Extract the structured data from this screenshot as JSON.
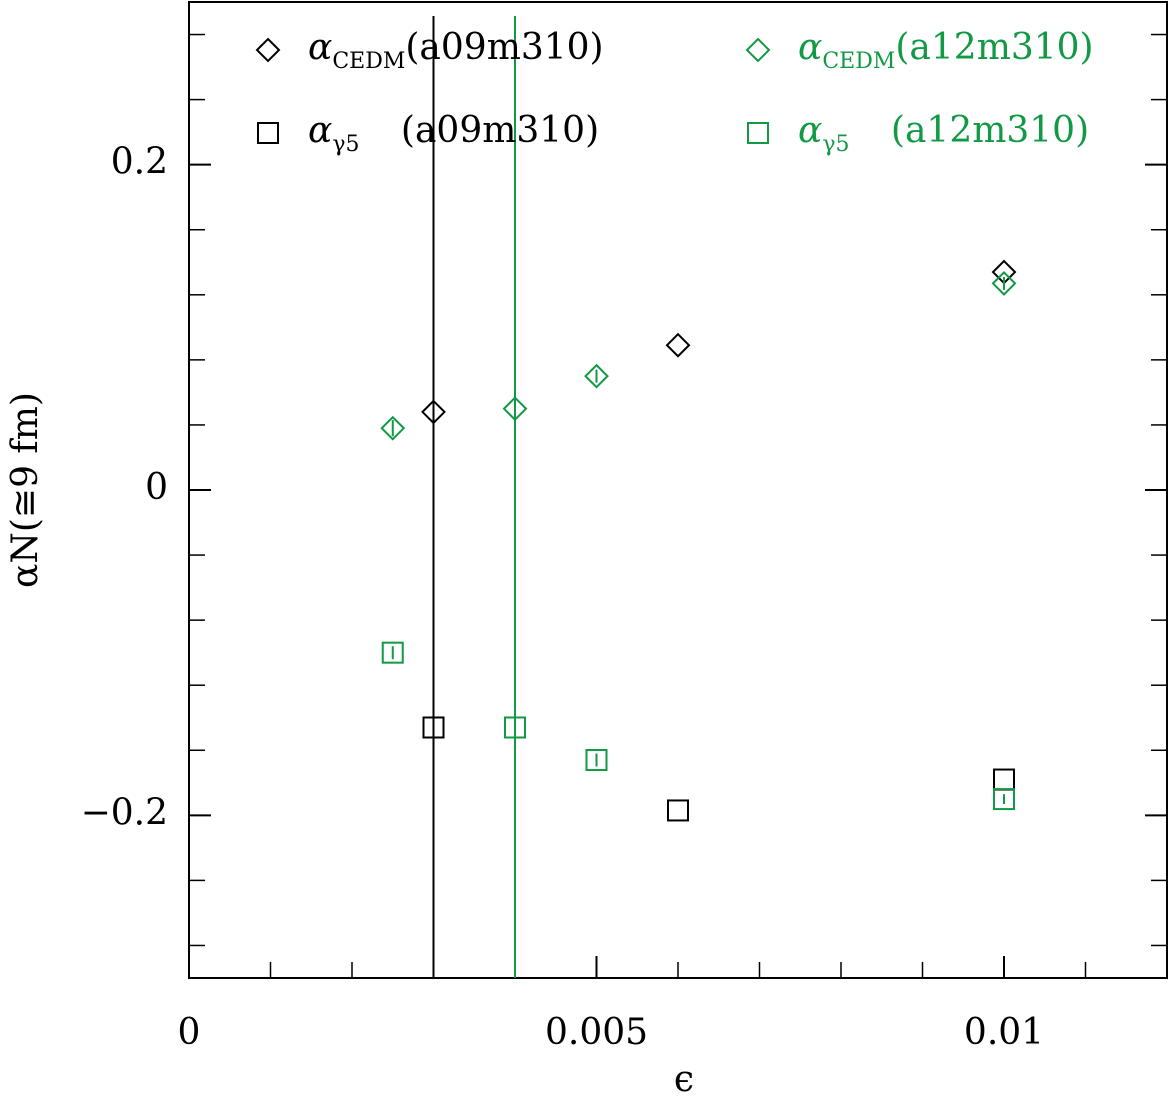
{
  "chart_data": {
    "type": "scatter",
    "xlabel": "ϵ",
    "ylabel": "αN(≅9 fm)",
    "xlim": [
      0,
      0.012
    ],
    "ylim": [
      -0.3,
      0.3
    ],
    "xticks": [
      0,
      0.005,
      0.01
    ],
    "yticks": [
      {
        "value": -0.2,
        "label": "−0.2"
      },
      0,
      0.2
    ],
    "xminorticks": [
      0.001,
      0.002,
      0.003,
      0.004,
      0.006,
      0.007,
      0.008,
      0.009,
      0.011
    ],
    "yminorticks": [
      -0.28,
      -0.24,
      -0.16,
      -0.12,
      -0.08,
      -0.04,
      0.04,
      0.08,
      0.12,
      0.16,
      0.24,
      0.28
    ],
    "vlines": [
      {
        "x": 0.003,
        "color": "#000000"
      },
      {
        "x": 0.004,
        "color": "#119944"
      }
    ],
    "series": [
      {
        "name": "αCEDM(a09m310)",
        "marker": "diamond",
        "color": "#000000",
        "x": [
          0.003,
          0.006,
          0.01
        ],
        "values": [
          0.048,
          0.089,
          0.134
        ]
      },
      {
        "name": "αCEDM(a12m310)",
        "marker": "diamond",
        "color": "#119944",
        "x": [
          0.0025,
          0.004,
          0.005,
          0.01
        ],
        "values": [
          0.038,
          0.05,
          0.07,
          0.127
        ],
        "errors": [
          0.005,
          0.004,
          0.004,
          0.004
        ]
      },
      {
        "name": "αγ5 (a09m310)",
        "marker": "square",
        "color": "#000000",
        "x": [
          0.003,
          0.006,
          0.01
        ],
        "values": [
          -0.146,
          -0.197,
          -0.178
        ]
      },
      {
        "name": "αγ5 (a12m310)",
        "marker": "square",
        "color": "#119944",
        "x": [
          0.0025,
          0.004,
          0.005,
          0.01
        ],
        "values": [
          -0.1,
          -0.146,
          -0.166,
          -0.19
        ],
        "errors": [
          0.004,
          0.003,
          0.004,
          0.003
        ]
      }
    ]
  }
}
